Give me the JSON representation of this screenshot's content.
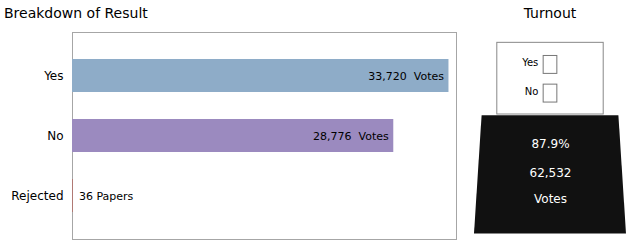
{
  "chart_data": [
    {
      "type": "bar",
      "title": "Breakdown of Result",
      "orientation": "horizontal",
      "categories": [
        "Yes",
        "No",
        "Rejected"
      ],
      "values": [
        33720,
        28776,
        36
      ],
      "value_labels": [
        "33,720  Votes",
        "28,776  Votes",
        "36 Papers"
      ],
      "colors": [
        "#8eacc8",
        "#9b8abf",
        "#c0392b"
      ],
      "xlim": [
        0,
        34394.4
      ],
      "data_labels": true,
      "tick_labels": "y",
      "grid": false
    },
    {
      "type": "ballot",
      "title": "Turnout",
      "color": "#111111",
      "annotations": [
        "Yes",
        "No",
        "87.9%",
        "62,532",
        "Votes"
      ]
    }
  ]
}
